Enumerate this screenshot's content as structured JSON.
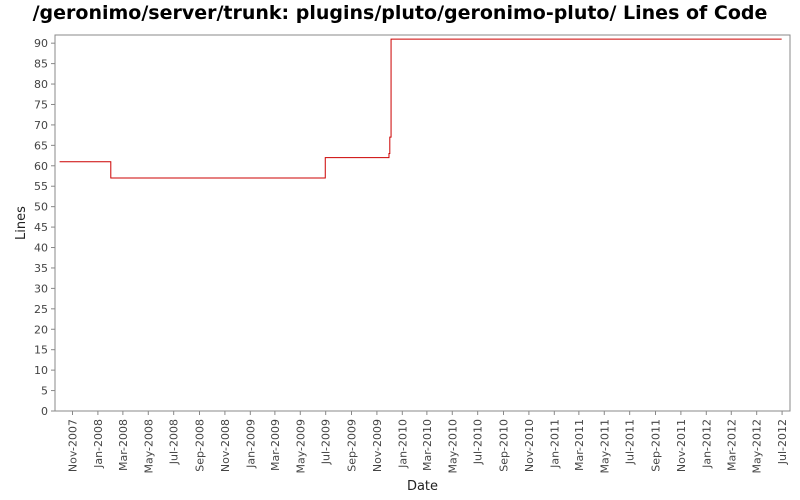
{
  "chart_data": {
    "type": "line",
    "title": "/geronimo/server/trunk: plugins/pluto/geronimo-pluto/ Lines of Code",
    "xlabel": "Date",
    "ylabel": "Lines",
    "ylim": [
      0,
      92
    ],
    "xlim": [
      "2007-09-20",
      "2012-07-20"
    ],
    "yticks": [
      0,
      5,
      10,
      15,
      20,
      25,
      30,
      35,
      40,
      45,
      50,
      55,
      60,
      65,
      70,
      75,
      80,
      85,
      90
    ],
    "xticks": [
      {
        "date": "2007-11-01",
        "label": "Nov-2007"
      },
      {
        "date": "2008-01-01",
        "label": "Jan-2008"
      },
      {
        "date": "2008-03-01",
        "label": "Mar-2008"
      },
      {
        "date": "2008-05-01",
        "label": "May-2008"
      },
      {
        "date": "2008-07-01",
        "label": "Jul-2008"
      },
      {
        "date": "2008-09-01",
        "label": "Sep-2008"
      },
      {
        "date": "2008-11-01",
        "label": "Nov-2008"
      },
      {
        "date": "2009-01-01",
        "label": "Jan-2009"
      },
      {
        "date": "2009-03-01",
        "label": "Mar-2009"
      },
      {
        "date": "2009-05-01",
        "label": "May-2009"
      },
      {
        "date": "2009-07-01",
        "label": "Jul-2009"
      },
      {
        "date": "2009-09-01",
        "label": "Sep-2009"
      },
      {
        "date": "2009-11-01",
        "label": "Nov-2009"
      },
      {
        "date": "2010-01-01",
        "label": "Jan-2010"
      },
      {
        "date": "2010-03-01",
        "label": "Mar-2010"
      },
      {
        "date": "2010-05-01",
        "label": "May-2010"
      },
      {
        "date": "2010-07-01",
        "label": "Jul-2010"
      },
      {
        "date": "2010-09-01",
        "label": "Sep-2010"
      },
      {
        "date": "2010-11-01",
        "label": "Nov-2010"
      },
      {
        "date": "2011-01-01",
        "label": "Jan-2011"
      },
      {
        "date": "2011-03-01",
        "label": "Mar-2011"
      },
      {
        "date": "2011-05-01",
        "label": "May-2011"
      },
      {
        "date": "2011-07-01",
        "label": "Jul-2011"
      },
      {
        "date": "2011-09-01",
        "label": "Sep-2011"
      },
      {
        "date": "2011-11-01",
        "label": "Nov-2011"
      },
      {
        "date": "2012-01-01",
        "label": "Jan-2012"
      },
      {
        "date": "2012-03-01",
        "label": "Mar-2012"
      },
      {
        "date": "2012-05-01",
        "label": "May-2012"
      },
      {
        "date": "2012-07-01",
        "label": "Jul-2012"
      }
    ],
    "grid": false,
    "series": [
      {
        "color": "#cc0000",
        "step": true,
        "points": [
          {
            "x": "2007-10-01",
            "y": 61
          },
          {
            "x": "2008-02-01",
            "y": 57
          },
          {
            "x": "2009-06-30",
            "y": 62
          },
          {
            "x": "2009-11-30",
            "y": 63
          },
          {
            "x": "2009-12-02",
            "y": 67
          },
          {
            "x": "2009-12-05",
            "y": 91
          },
          {
            "x": "2012-06-30",
            "y": 91
          }
        ]
      }
    ]
  }
}
